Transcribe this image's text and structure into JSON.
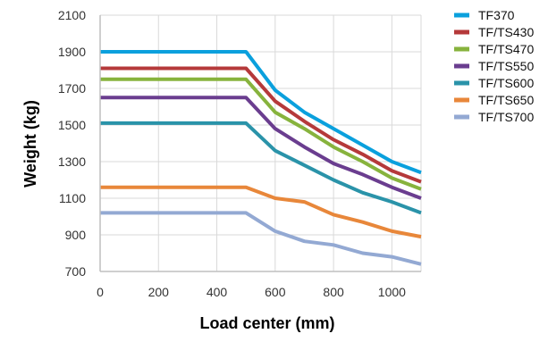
{
  "chart_data": {
    "type": "line",
    "title": "",
    "xlabel": "Load center (mm)",
    "ylabel": "Weight (kg)",
    "xlim": [
      0,
      1100
    ],
    "ylim": [
      700,
      2100
    ],
    "xticks": [
      0,
      200,
      400,
      600,
      800,
      1000
    ],
    "xtick_labels": [
      "0",
      "200",
      "400",
      "600",
      "800",
      "1000"
    ],
    "yticks": [
      700,
      900,
      1100,
      1300,
      1500,
      1700,
      1900,
      2100
    ],
    "ytick_labels": [
      "700",
      "900",
      "1100",
      "1300",
      "1500",
      "1700",
      "1900",
      "2100"
    ],
    "grid": true,
    "legend_position": "right",
    "series": [
      {
        "name": "TF370",
        "color": "#0aa0dd",
        "x": [
          0,
          500,
          600,
          700,
          800,
          900,
          1000,
          1100
        ],
        "y": [
          1900,
          1900,
          1690,
          1570,
          1480,
          1390,
          1300,
          1240
        ]
      },
      {
        "name": "TF/TS430",
        "color": "#b5393a",
        "x": [
          0,
          500,
          600,
          700,
          800,
          900,
          1000,
          1100
        ],
        "y": [
          1810,
          1810,
          1630,
          1520,
          1420,
          1340,
          1250,
          1190
        ]
      },
      {
        "name": "TF/TS470",
        "color": "#87b33d",
        "x": [
          0,
          500,
          600,
          700,
          800,
          900,
          1000,
          1100
        ],
        "y": [
          1750,
          1750,
          1570,
          1480,
          1380,
          1300,
          1210,
          1150
        ]
      },
      {
        "name": "TF/TS550",
        "color": "#6a3d8f",
        "x": [
          0,
          500,
          600,
          700,
          800,
          900,
          1000,
          1100
        ],
        "y": [
          1650,
          1650,
          1480,
          1380,
          1290,
          1230,
          1160,
          1100
        ]
      },
      {
        "name": "TF/TS600",
        "color": "#2a93a9",
        "x": [
          0,
          500,
          600,
          700,
          800,
          900,
          1000,
          1100
        ],
        "y": [
          1510,
          1510,
          1360,
          1280,
          1200,
          1130,
          1080,
          1020
        ]
      },
      {
        "name": "TF/TS650",
        "color": "#e8873a",
        "x": [
          0,
          500,
          600,
          700,
          800,
          900,
          1000,
          1100
        ],
        "y": [
          1160,
          1160,
          1100,
          1080,
          1010,
          970,
          920,
          890
        ]
      },
      {
        "name": "TF/TS700",
        "color": "#93a9d3",
        "x": [
          0,
          500,
          600,
          700,
          800,
          900,
          1000,
          1100
        ],
        "y": [
          1020,
          1020,
          920,
          865,
          845,
          800,
          780,
          740
        ]
      }
    ]
  }
}
